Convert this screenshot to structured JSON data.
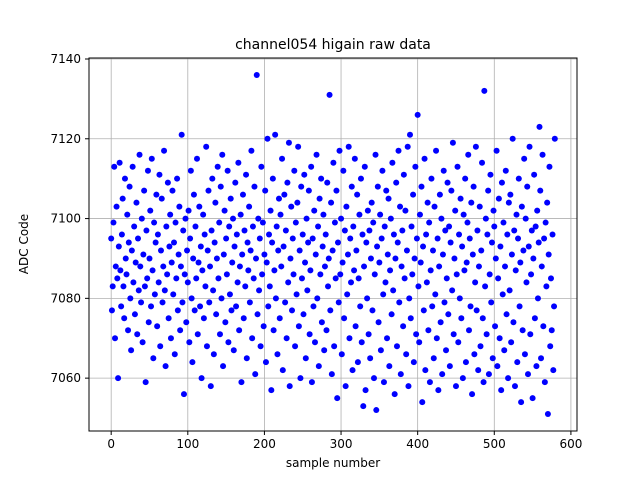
{
  "figure": {
    "background": "#ffffff",
    "title": "channel054 higain raw data",
    "xlabel": "sample number",
    "ylabel": "ADC Code"
  },
  "chart_data": {
    "type": "scatter",
    "title": "channel054 higain raw data",
    "xlabel": "sample number",
    "ylabel": "ADC Code",
    "marker_color": "#0000ff",
    "grid": true,
    "grid_color": "#b0b0b0",
    "legend": "none",
    "xlim": [
      -28.95,
      607.95
    ],
    "ylim": [
      7046.75,
      7140.25
    ],
    "xticks": [
      0,
      100,
      200,
      300,
      400,
      500,
      600
    ],
    "yticks": [
      7060,
      7080,
      7100,
      7120,
      7140
    ],
    "x_start": 0,
    "x_step": 1,
    "y": [
      7095,
      7077,
      7083,
      7099,
      7113,
      7070,
      7088,
      7103,
      7085,
      7060,
      7093,
      7114,
      7087,
      7078,
      7096,
      7105,
      7083,
      7075,
      7110,
      7090,
      7086,
      7101,
      7072,
      7094,
      7108,
      7080,
      7067,
      7092,
      7113,
      7084,
      7098,
      7076,
      7089,
      7104,
      7071,
      7095,
      7082,
      7116,
      7088,
      7079,
      7100,
      7069,
      7091,
      7107,
      7083,
      7059,
      7097,
      7085,
      7112,
      7074,
      7090,
      7102,
      7078,
      7115,
      7087,
      7065,
      7099,
      7081,
      7094,
      7106,
      7073,
      7096,
      7084,
      7111,
      7068,
      7092,
      7105,
      7079,
      7088,
      7117,
      7082,
      7063,
      7098,
      7086,
      7109,
      7075,
      7093,
      7101,
      7070,
      7089,
      7107,
      7081,
      7094,
      7066,
      7099,
      7085,
      7110,
      7077,
      7091,
      7103,
      7072,
      7088,
      7121,
      7079,
      7097,
      7056,
      7086,
      7100,
      7074,
      7092,
      7084,
      7102,
      7069,
      7095,
      7112,
      7080,
      7064,
      7090,
      7106,
      7077,
      7098,
      7085,
      7115,
      7071,
      7089,
      7103,
      7078,
      7093,
      7060,
      7087,
      7101,
      7075,
      7096,
      7083,
      7118,
      7068,
      7092,
      7107,
      7079,
      7088,
      7058,
      7097,
      7110,
      7082,
      7066,
      7094,
      7104,
      7076,
      7090,
      7113,
      7085,
      7099,
      7071,
      7108,
      7080,
      7116,
      7063,
      7091,
      7102,
      7074,
      7095,
      7086,
      7112,
      7069,
      7098,
      7081,
      7105,
      7077,
      7089,
      7100,
      7067,
      7093,
      7109,
      7078,
      7096,
      7084,
      7114,
      7072,
      7088,
      7101,
      7059,
      7091,
      7106,
      7075,
      7097,
      7083,
      7111,
      7065,
      7094,
      7087,
      7103,
      7079,
      7092,
      7117,
      7070,
      7098,
      7085,
      7108,
      7061,
      7090,
      7136,
      7076,
      7100,
      7082,
      7095,
      7068,
      7113,
      7086,
      7099,
      7073,
      7091,
      7107,
      7064,
      7089,
      7120,
      7078,
      7096,
      7083,
      7102,
      7057,
      7094,
      7110,
      7072,
      7087,
      7121,
      7080,
      7098,
      7066,
      7092,
      7105,
      7075,
      7101,
      7088,
      7115,
      7062,
      7093,
      7106,
      7079,
      7097,
      7070,
      7109,
      7084,
      7119,
      7058,
      7090,
      7103,
      7077,
      7095,
      7086,
      7112,
      7068,
      7099,
      7081,
      7104,
      7118,
      7073,
      7092,
      7060,
      7108,
      7085,
      7096,
      7076,
      7111,
      7089,
      7065,
      7100,
      7082,
      7094,
      7107,
      7071,
      7087,
      7113,
      7059,
      7095,
      7078,
      7102,
      7069,
      7091,
      7116,
      7080,
      7098,
      7063,
      7105,
      7086,
      7110,
      7074,
      7093,
      7101,
      7067,
      7088,
      7096,
      7072,
      7109,
      7083,
      7090,
      7131,
      7077,
      7104,
      7061,
      7092,
      7114,
      7068,
      7099,
      7085,
      7107,
      7055,
      7094,
      7079,
      7117,
      7086,
      7100,
      7066,
      7089,
      7112,
      7075,
      7097,
      7058,
      7103,
      7081,
      7091,
      7118,
      7070,
      7095,
      7084,
      7108,
      7062,
      7098,
      7087,
      7115,
      7073,
      7092,
      7106,
      7064,
      7085,
      7101,
      7078,
      7110,
      7069,
      7096,
      7053,
      7088,
      7113,
      7057,
      7094,
      7080,
      7102,
      7071,
      7097,
      7065,
      7090,
      7104,
      7077,
      7099,
      7060,
      7086,
      7116,
      7052,
      7093,
      7108,
      7074,
      7089,
      7101,
      7067,
      7095,
      7112,
      7081,
      7059,
      7098,
      7084,
      7107,
      7070,
      7091,
      7105,
      7063,
      7087,
      7100,
      7076,
      7114,
      7082,
      7096,
      7056,
      7090,
      7109,
      7068,
      7094,
      7117,
      7079,
      7103,
      7061,
      7088,
      7097,
      7073,
      7111,
      7085,
      7102,
      7066,
      7092,
      7118,
      7058,
      7080,
      7121,
      7075,
      7098,
      7086,
      7106,
      7064,
      7090,
      7113,
      7071,
      7095,
      7126,
      7083,
      7069,
      7101,
      7089,
      7108,
      7054,
      7093,
      7077,
      7115,
      7062,
      7096,
      7084,
      7104,
      7072,
      7099,
      7059,
      7087,
      7110,
      7078,
      7092,
      7065,
      7103,
      7081,
      7117,
      7070,
      7095,
      7057,
      7088,
      7106,
      7074,
      7100,
      7061,
      7091,
      7112,
      7079,
      7097,
      7067,
      7085,
      7109,
      7076,
      7098,
      7063,
      7094,
      7107,
      7082,
      7119,
      7071,
      7090,
      7102,
      7058,
      7086,
      7113,
      7069,
      7096,
      7080,
      7105,
      7075,
      7093,
      7060,
      7101,
      7087,
      7110,
      7064,
      7089,
      7099,
      7116,
      7072,
      7095,
      7078,
      7104,
      7056,
      7091,
      7108,
      7066,
      7084,
      7118,
      7077,
      7097,
      7062,
      7088,
      7103,
      7068,
      7092,
      7114,
      7075,
      7059,
      7132,
      7083,
      7100,
      7071,
      7096,
      7107,
      7061,
      7086,
      7111,
      7079,
      7094,
      7065,
      7102,
      7098,
      7073,
      7090,
      7117,
      7063,
      7085,
      7105,
      7070,
      7093,
      7057,
      7109,
      7081,
      7099,
      7067,
      7088,
      7112,
      7076,
      7096,
      7060,
      7104,
      7082,
      7106,
      7069,
      7091,
      7120,
      7074,
      7097,
      7058,
      7087,
      7101,
      7064,
      7095,
      7110,
      7078,
      7089,
      7054,
      7103,
      7072,
      7092,
      7115,
      7066,
      7100,
      7084,
      7108,
      7061,
      7093,
      7118,
      7071,
      7086,
      7097,
      7055,
      7090,
      7111,
      7075,
      7098,
      7063,
      7102,
      7080,
      7094,
      7123,
      7107,
      7065,
      7088,
      7116,
      7073,
      7095,
      7059,
      7099,
      7083,
      7104,
      7051,
      7091,
      7113,
      7068,
      7085,
      7072,
      7096,
      7062,
      7078,
      7120
    ]
  }
}
